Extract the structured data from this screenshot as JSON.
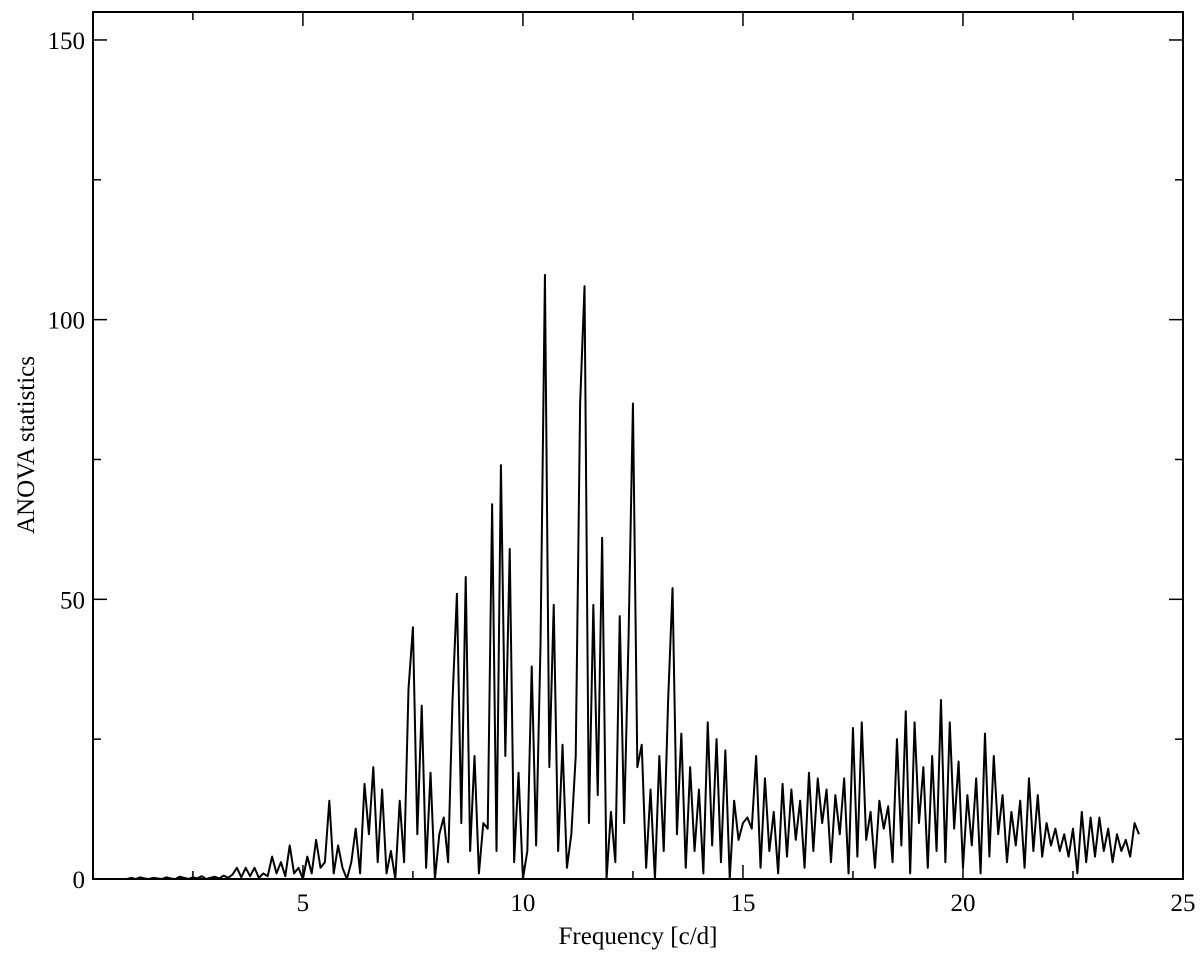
{
  "chart_data": {
    "type": "line",
    "x_label": "Frequency [c/d]",
    "y_label": "ANOVA statistics",
    "xlim": [
      0.23,
      25
    ],
    "ylim": [
      0,
      155
    ],
    "xticks": [
      5,
      10,
      15,
      20,
      25
    ],
    "xminor_ticks": [
      2.5,
      7.5,
      12.5,
      17.5,
      22.5
    ],
    "yticks": [
      0,
      50,
      100,
      150
    ],
    "yminor_ticks": [
      25,
      75,
      125
    ],
    "color": "#000000",
    "x": [
      1,
      1.1,
      1.2,
      1.3,
      1.4,
      1.5,
      1.6,
      1.7,
      1.8,
      1.9,
      2,
      2.1,
      2.2,
      2.3,
      2.4,
      2.5,
      2.6,
      2.7,
      2.8,
      2.9,
      3,
      3.1,
      3.2,
      3.3,
      3.4,
      3.5,
      3.6,
      3.7,
      3.8,
      3.9,
      4,
      4.1,
      4.2,
      4.3,
      4.4,
      4.5,
      4.6,
      4.7,
      4.8,
      4.9,
      5,
      5.1,
      5.2,
      5.3,
      5.4,
      5.5,
      5.6,
      5.7,
      5.8,
      5.9,
      6,
      6.1,
      6.2,
      6.3,
      6.4,
      6.5,
      6.6,
      6.7,
      6.8,
      6.9,
      7,
      7.1,
      7.2,
      7.3,
      7.4,
      7.5,
      7.6,
      7.7,
      7.8,
      7.9,
      8,
      8.1,
      8.2,
      8.3,
      8.4,
      8.5,
      8.6,
      8.7,
      8.8,
      8.9,
      9,
      9.1,
      9.2,
      9.3,
      9.4,
      9.5,
      9.6,
      9.7,
      9.8,
      9.9,
      10,
      10.1,
      10.2,
      10.3,
      10.4,
      10.5,
      10.6,
      10.7,
      10.8,
      10.9,
      11,
      11.1,
      11.2,
      11.3,
      11.4,
      11.5,
      11.6,
      11.7,
      11.8,
      11.9,
      12,
      12.1,
      12.2,
      12.3,
      12.4,
      12.5,
      12.6,
      12.7,
      12.8,
      12.9,
      13,
      13.1,
      13.2,
      13.3,
      13.4,
      13.5,
      13.6,
      13.7,
      13.8,
      13.9,
      14,
      14.1,
      14.2,
      14.3,
      14.4,
      14.5,
      14.6,
      14.7,
      14.8,
      14.9,
      15,
      15.1,
      15.2,
      15.3,
      15.4,
      15.5,
      15.6,
      15.7,
      15.8,
      15.9,
      16,
      16.1,
      16.2,
      16.3,
      16.4,
      16.5,
      16.6,
      16.7,
      16.8,
      16.9,
      17,
      17.1,
      17.2,
      17.3,
      17.4,
      17.5,
      17.6,
      17.7,
      17.8,
      17.9,
      18,
      18.1,
      18.2,
      18.3,
      18.4,
      18.5,
      18.6,
      18.7,
      18.8,
      18.9,
      19,
      19.1,
      19.2,
      19.3,
      19.4,
      19.5,
      19.6,
      19.7,
      19.8,
      19.9,
      20,
      20.1,
      20.2,
      20.3,
      20.4,
      20.5,
      20.6,
      20.7,
      20.8,
      20.9,
      21,
      21.1,
      21.2,
      21.3,
      21.4,
      21.5,
      21.6,
      21.7,
      21.8,
      21.9,
      22,
      22.1,
      22.2,
      22.3,
      22.4,
      22.5,
      22.6,
      22.7,
      22.8,
      22.9,
      23,
      23.1,
      23.2,
      23.3,
      23.4,
      23.5,
      23.6,
      23.7,
      23.8,
      23.9,
      24
    ],
    "values": [
      0,
      0.2,
      0,
      0.3,
      0.1,
      0,
      0.2,
      0.1,
      0,
      0.3,
      0.1,
      0,
      0.4,
      0.2,
      0,
      0.3,
      0.1,
      0.5,
      0,
      0.2,
      0.4,
      0.1,
      0.6,
      0.2,
      0.8,
      2,
      0.3,
      2,
      0.5,
      2,
      0.2,
      1,
      0.5,
      4,
      1,
      3,
      0.5,
      6,
      1,
      2,
      0,
      4,
      1,
      7,
      2,
      3,
      14,
      1,
      6,
      2,
      0,
      3,
      9,
      1,
      17,
      8,
      20,
      3,
      16,
      1,
      5,
      0,
      14,
      3,
      34,
      45,
      8,
      31,
      2,
      19,
      0,
      8,
      11,
      3,
      32,
      51,
      10,
      54,
      5,
      22,
      1,
      10,
      9,
      67,
      5,
      74,
      22,
      59,
      3,
      19,
      0,
      5,
      38,
      6,
      42,
      108,
      20,
      49,
      5,
      24,
      2,
      8,
      22,
      85,
      106,
      10,
      49,
      15,
      61,
      0,
      12,
      3,
      47,
      10,
      43,
      85,
      20,
      24,
      2,
      16,
      0,
      22,
      5,
      32,
      52,
      8,
      26,
      2,
      20,
      5,
      16,
      1,
      28,
      6,
      25,
      3,
      23,
      0,
      14,
      7,
      10,
      11,
      9,
      22,
      2,
      18,
      5,
      12,
      1,
      17,
      4,
      16,
      7,
      14,
      2,
      19,
      5,
      18,
      10,
      16,
      3,
      15,
      8,
      18,
      1,
      27,
      4,
      28,
      7,
      12,
      2,
      14,
      9,
      13,
      3,
      25,
      6,
      30,
      1,
      28,
      10,
      20,
      2,
      22,
      5,
      32,
      3,
      28,
      9,
      21,
      2,
      15,
      6,
      18,
      1,
      26,
      4,
      22,
      8,
      15,
      3,
      12,
      6,
      14,
      2,
      18,
      5,
      15,
      4,
      10,
      6,
      9,
      5,
      8,
      4,
      9,
      1,
      12,
      3,
      11,
      4,
      11,
      5,
      9,
      3,
      8,
      5,
      7,
      4,
      10,
      8
    ]
  }
}
